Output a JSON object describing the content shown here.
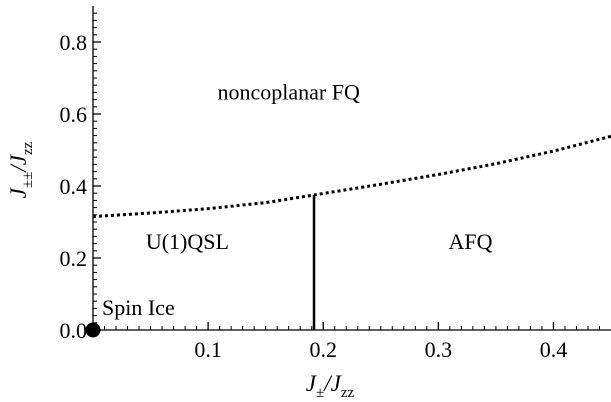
{
  "chart_data": {
    "type": "line",
    "xlabel": {
      "main": "J",
      "sub1": "±",
      "slash": "/J",
      "sub2": "zz"
    },
    "ylabel": {
      "main": "J",
      "sub1": "±±",
      "slash": "/J",
      "sub2": "zz"
    },
    "xlim": [
      0,
      0.45
    ],
    "ylim": [
      0,
      0.9
    ],
    "x_ticks": [
      {
        "value": 0.1,
        "label": "0.1"
      },
      {
        "value": 0.2,
        "label": "0.2"
      },
      {
        "value": 0.3,
        "label": "0.3"
      },
      {
        "value": 0.4,
        "label": "0.4"
      }
    ],
    "y_ticks": [
      {
        "value": 0.0,
        "label": "0.0"
      },
      {
        "value": 0.2,
        "label": "0.2"
      },
      {
        "value": 0.4,
        "label": "0.4"
      },
      {
        "value": 0.6,
        "label": "0.6"
      },
      {
        "value": 0.8,
        "label": "0.8"
      }
    ],
    "boundary_curve": {
      "style": "dotted",
      "x": [
        0.0,
        0.05,
        0.1,
        0.15,
        0.192,
        0.25,
        0.3,
        0.35,
        0.4,
        0.45
      ],
      "y": [
        0.315,
        0.325,
        0.337,
        0.354,
        0.375,
        0.405,
        0.432,
        0.462,
        0.497,
        0.538
      ]
    },
    "vertical_boundary": {
      "style": "solid",
      "x": 0.192,
      "y": [
        0.0,
        0.375
      ]
    },
    "point": {
      "x": 0.0,
      "y": 0.0,
      "label": "Spin Ice"
    },
    "regions": [
      {
        "label": "noncoplanar FQ",
        "x": 0.17,
        "y": 0.64
      },
      {
        "label": "U(1)QSL",
        "x": 0.082,
        "y": 0.225
      },
      {
        "label": "AFQ",
        "x": 0.328,
        "y": 0.225
      }
    ]
  }
}
